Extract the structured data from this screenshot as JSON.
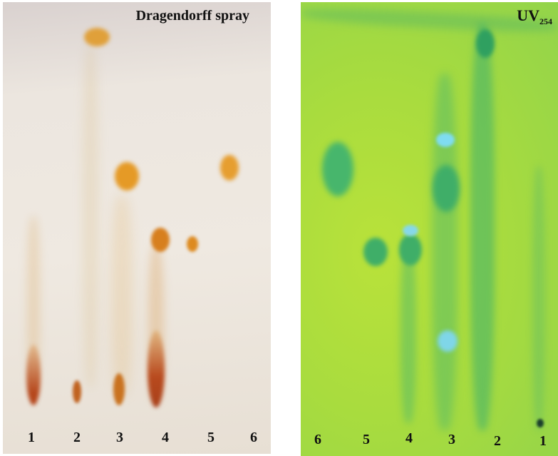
{
  "plates": [
    {
      "id": "left",
      "title": "Dragendorff spray",
      "lanes": [
        "1",
        "2",
        "3",
        "4",
        "5",
        "6"
      ]
    },
    {
      "id": "right",
      "title_main": "UV",
      "title_sub": "254",
      "lanes": [
        "6",
        "5",
        "4",
        "3",
        "2",
        "1"
      ]
    }
  ],
  "colors": {
    "plate_left_bg": "#ede7df",
    "plate_right_bg": "#a8db3f",
    "dragendorff_orange": "#e3951c",
    "dragendorff_dark": "#b5461b",
    "uv_quench": "#45b56d",
    "uv_fluor": "#7fdcf2"
  }
}
